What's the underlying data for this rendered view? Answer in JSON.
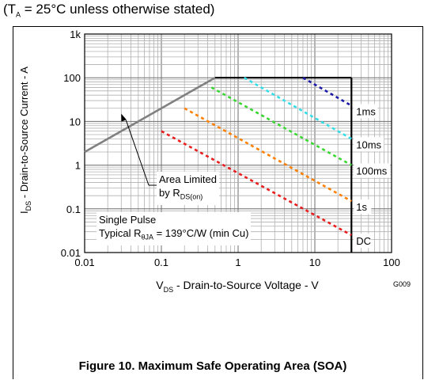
{
  "header": {
    "pre": "(T",
    "sub": "A",
    "post": " = 25°C unless otherwise stated)"
  },
  "chart_data": {
    "type": "line",
    "title": "Figure 10. Maximum Safe Operating Area (SOA)",
    "xlabel": {
      "pre": "V",
      "sub": "DS",
      "post": " - Drain-to-Source Voltage - V"
    },
    "ylabel": {
      "pre": "I",
      "sub": "DS",
      "post": " - Drain-to-Source Current - A"
    },
    "xscale": "log",
    "yscale": "log",
    "xlim": [
      0.01,
      100
    ],
    "ylim": [
      0.01,
      1000
    ],
    "xticks": [
      "0.01",
      "0.1",
      "1",
      "10",
      "100"
    ],
    "yticks": [
      "0.01",
      "0.1",
      "1",
      "10",
      "100",
      "1k"
    ],
    "grid": true,
    "figure_code": "G009",
    "limits": {
      "current_max": 100,
      "voltage_max": 30
    },
    "series": [
      {
        "name": "Area Limited by RDS(on)",
        "label": {
          "pre": "Area Limited",
          "pre2": "by R",
          "sub": "DS(on)"
        },
        "color": "#808080",
        "style": "solid",
        "x": [
          0.01,
          0.5
        ],
        "y": [
          2,
          100
        ]
      },
      {
        "name": "1ms",
        "color": "#1a1aa6",
        "style": "dashed",
        "x": [
          7,
          30
        ],
        "y": [
          100,
          23
        ]
      },
      {
        "name": "10ms",
        "color": "#33dde8",
        "style": "dashed",
        "x": [
          1.2,
          30
        ],
        "y": [
          100,
          4
        ]
      },
      {
        "name": "100ms",
        "color": "#3ad631",
        "style": "dashed",
        "x": [
          0.45,
          30
        ],
        "y": [
          60,
          1
        ]
      },
      {
        "name": "1s",
        "color": "#ff8000",
        "style": "dashed",
        "x": [
          0.2,
          30
        ],
        "y": [
          20,
          0.15
        ]
      },
      {
        "name": "DC",
        "color": "#e81e1e",
        "style": "dashed",
        "x": [
          0.1,
          30
        ],
        "y": [
          6,
          0.025
        ]
      }
    ],
    "annotation": {
      "line1": "Single Pulse",
      "pre": "Typical R",
      "sub": "θJA",
      "post": " = 139°C/W (min Cu)"
    }
  }
}
